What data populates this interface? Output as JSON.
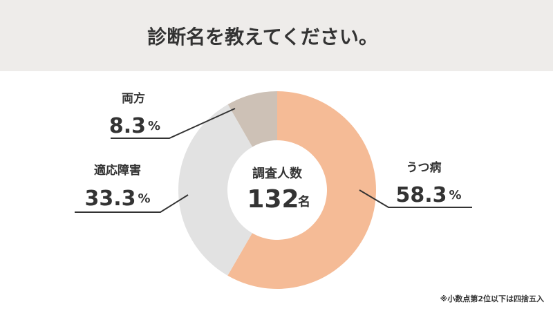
{
  "chart_data": {
    "type": "donut",
    "title": "診断名を教えてください。",
    "categories": [
      "うつ病",
      "適応障害",
      "両方"
    ],
    "values": [
      58.3,
      33.3,
      8.3
    ],
    "value_unit": "%",
    "colors": [
      "#f5bb96",
      "#e2e2e2",
      "#cdc1b6"
    ],
    "center_label": "調査人数",
    "center_value": 132,
    "center_unit": "名",
    "footnote": "※小数点第2位以下は四捨五入"
  }
}
